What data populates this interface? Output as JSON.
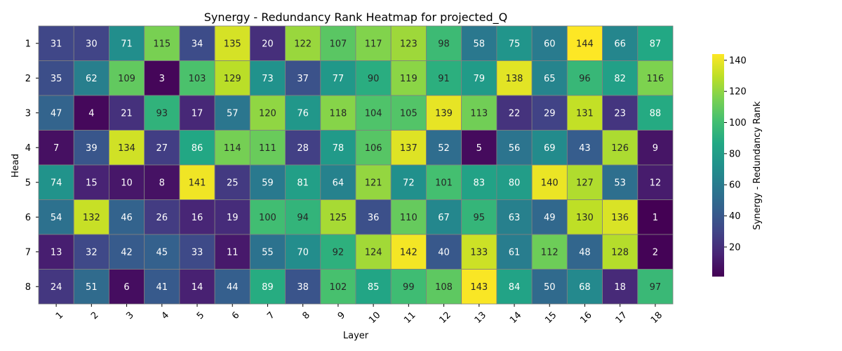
{
  "chart_data": {
    "type": "heatmap",
    "title": "Synergy - Redundancy Rank Heatmap for projected_Q",
    "xlabel": "Layer",
    "ylabel": "Head",
    "x_ticks": [
      "1",
      "2",
      "3",
      "4",
      "5",
      "6",
      "7",
      "8",
      "9",
      "10",
      "11",
      "12",
      "13",
      "14",
      "15",
      "16",
      "17",
      "18"
    ],
    "y_ticks": [
      "1",
      "2",
      "3",
      "4",
      "5",
      "6",
      "7",
      "8"
    ],
    "values": [
      [
        31,
        30,
        71,
        115,
        34,
        135,
        20,
        122,
        107,
        117,
        123,
        98,
        58,
        75,
        60,
        144,
        66,
        87
      ],
      [
        35,
        62,
        109,
        3,
        103,
        129,
        73,
        37,
        77,
        90,
        119,
        91,
        79,
        138,
        65,
        96,
        82,
        116
      ],
      [
        47,
        4,
        21,
        93,
        17,
        57,
        120,
        76,
        118,
        104,
        105,
        139,
        113,
        22,
        29,
        131,
        23,
        88
      ],
      [
        7,
        39,
        134,
        27,
        86,
        114,
        111,
        28,
        78,
        106,
        137,
        52,
        5,
        56,
        69,
        43,
        126,
        9
      ],
      [
        74,
        15,
        10,
        8,
        141,
        25,
        59,
        81,
        64,
        121,
        72,
        101,
        83,
        80,
        140,
        127,
        53,
        12
      ],
      [
        54,
        132,
        46,
        26,
        16,
        19,
        100,
        94,
        125,
        36,
        110,
        67,
        95,
        63,
        49,
        130,
        136,
        1
      ],
      [
        13,
        32,
        42,
        45,
        33,
        11,
        55,
        70,
        92,
        124,
        142,
        40,
        133,
        61,
        112,
        48,
        128,
        2
      ],
      [
        24,
        51,
        6,
        41,
        14,
        44,
        89,
        38,
        102,
        85,
        99,
        108,
        143,
        84,
        50,
        68,
        18,
        97
      ]
    ],
    "vmin": 1,
    "vmax": 144,
    "colormap": "viridis",
    "colorbar": {
      "label": "Synergy - Redundancy Rank",
      "ticks": [
        20,
        40,
        60,
        80,
        100,
        120,
        140
      ]
    }
  }
}
